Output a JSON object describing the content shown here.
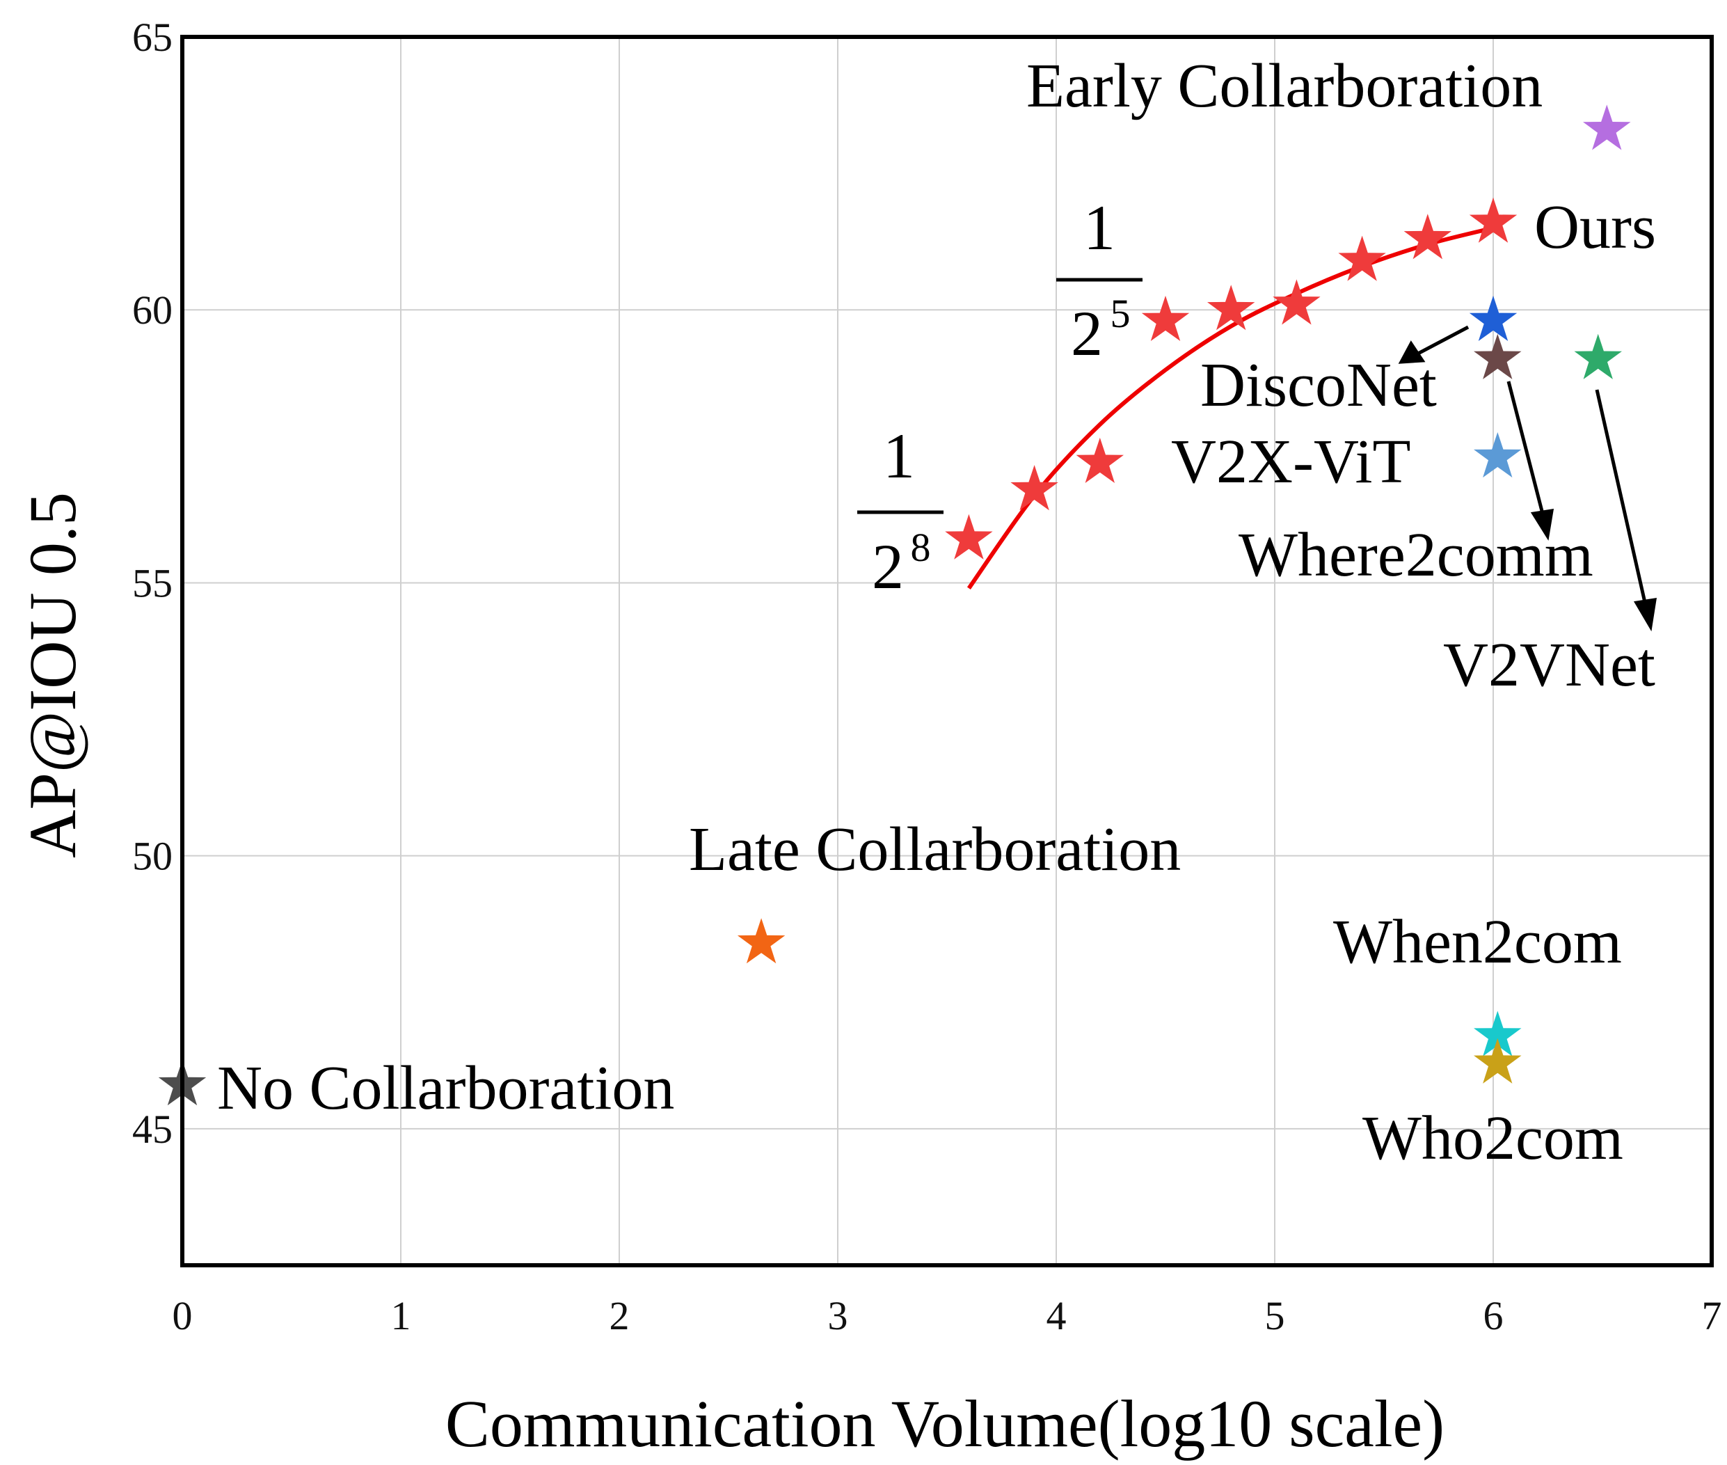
{
  "chart_data": {
    "type": "scatter",
    "xlabel": "Communication Volume(log10 scale)",
    "ylabel": "AP@IOU 0.5",
    "xlim": [
      0,
      7
    ],
    "ylim": [
      42.5,
      65
    ],
    "xticks": [
      0,
      1,
      2,
      3,
      4,
      5,
      6,
      7
    ],
    "yticks": [
      45,
      50,
      55,
      60,
      65
    ],
    "grid": true,
    "series": [
      {
        "name": "Ours",
        "color": "#ef3b3b",
        "x": [
          3.6,
          3.9,
          4.2,
          4.5,
          4.8,
          5.1,
          5.4,
          5.7,
          6.0
        ],
        "y": [
          55.8,
          56.7,
          57.2,
          59.8,
          60.0,
          60.1,
          60.9,
          61.3,
          61.6
        ]
      },
      {
        "name": "Early Collarboration",
        "color": "#b56ee0",
        "x": [
          6.52
        ],
        "y": [
          63.3
        ]
      },
      {
        "name": "DiscoNet",
        "color": "#1f5fd6",
        "x": [
          6.0
        ],
        "y": [
          59.8
        ]
      },
      {
        "name": "Where2comm",
        "color": "#6b4848",
        "x": [
          6.02
        ],
        "y": [
          59.1
        ]
      },
      {
        "name": "V2VNet",
        "color": "#2eaa6a",
        "x": [
          6.48
        ],
        "y": [
          59.1
        ]
      },
      {
        "name": "V2X-ViT",
        "color": "#5b9ad6",
        "x": [
          6.02
        ],
        "y": [
          57.3
        ]
      },
      {
        "name": "When2com",
        "color": "#19c9cc",
        "x": [
          6.02
        ],
        "y": [
          46.7
        ]
      },
      {
        "name": "Who2com",
        "color": "#c9a118",
        "x": [
          6.02
        ],
        "y": [
          46.2
        ]
      },
      {
        "name": "Late Collarboration",
        "color": "#f26514",
        "x": [
          2.65
        ],
        "y": [
          48.4
        ]
      },
      {
        "name": "No Collarboration",
        "color": "#4d4d4d",
        "x": [
          0.0
        ],
        "y": [
          45.8
        ]
      }
    ],
    "fit_curve": {
      "color": "#ee0000",
      "points": [
        [
          3.6,
          54.9
        ],
        [
          3.9,
          56.6
        ],
        [
          4.2,
          57.9
        ],
        [
          4.5,
          58.9
        ],
        [
          4.8,
          59.7
        ],
        [
          5.1,
          60.3
        ],
        [
          5.4,
          60.8
        ],
        [
          5.7,
          61.2
        ],
        [
          6.0,
          61.5
        ]
      ]
    },
    "annotations": {
      "early": "Early Collarboration",
      "ours": "Ours",
      "disconet": "DiscoNet",
      "v2xvit": "V2X-ViT",
      "where2comm": "Where2comm",
      "v2vnet": "V2VNet",
      "late": "Late Collarboration",
      "when2com": "When2com",
      "who2com": "Who2com",
      "no": "No Collarboration"
    },
    "fractions": [
      {
        "numerator": "1",
        "base": "2",
        "exponent": "5"
      },
      {
        "numerator": "1",
        "base": "2",
        "exponent": "8"
      }
    ]
  }
}
